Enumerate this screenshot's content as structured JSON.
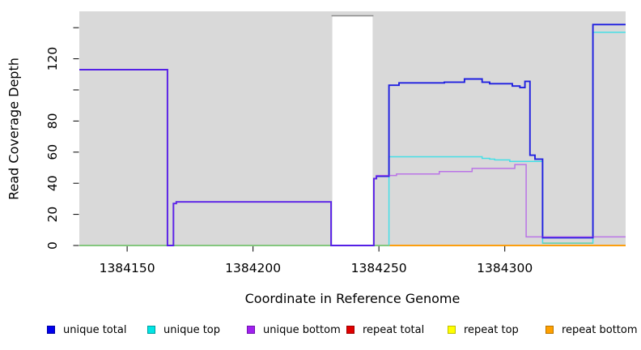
{
  "figure": {
    "xlabel": "Coordinate in Reference Genome",
    "ylabel": "Read Coverage Depth"
  },
  "chart_data": {
    "type": "line",
    "style": "step",
    "title": "",
    "xlabel": "Coordinate in Reference Genome",
    "ylabel": "Read Coverage Depth",
    "xlim": [
      1384131,
      1384348
    ],
    "ylim": [
      0,
      150.5
    ],
    "x_ticks": [
      1384150,
      1384200,
      1384250,
      1384300
    ],
    "x_tick_labels": [
      "1384150",
      "1384200",
      "1384250",
      "1384300"
    ],
    "y_ticks": [
      0,
      20,
      40,
      60,
      80,
      100,
      120,
      140
    ],
    "y_tick_labels": [
      "0",
      "20",
      "40",
      "60",
      "80",
      "",
      "120",
      ""
    ],
    "grid": false,
    "plot_bg": "#D9D9D9",
    "gap_region": {
      "x1": 1384231.5,
      "x2": 1384247.5,
      "fill": "#FFFFFF",
      "top_border_color": "#8A8A8A"
    },
    "series": [
      {
        "name": "unique total",
        "color": "#1F1FE0",
        "opacity": 1,
        "width": 1.9,
        "points": [
          [
            1384131,
            113
          ],
          [
            1384166,
            113
          ],
          [
            1384166,
            0
          ],
          [
            1384168.4,
            0
          ],
          [
            1384168.4,
            27
          ],
          [
            1384169.5,
            27
          ],
          [
            1384169.5,
            28
          ],
          [
            1384231,
            28
          ],
          [
            1384231,
            0
          ],
          [
            1384248,
            0
          ],
          [
            1384248,
            43
          ],
          [
            1384249,
            43
          ],
          [
            1384249,
            44.5
          ],
          [
            1384254,
            44.5
          ],
          [
            1384254,
            103
          ],
          [
            1384258,
            103
          ],
          [
            1384258,
            104.5
          ],
          [
            1384276,
            104.5
          ],
          [
            1384276,
            105
          ],
          [
            1384284,
            105
          ],
          [
            1384284,
            107
          ],
          [
            1384291,
            107
          ],
          [
            1384291,
            105
          ],
          [
            1384294,
            105
          ],
          [
            1384294,
            104
          ],
          [
            1384303,
            104
          ],
          [
            1384303,
            102.5
          ],
          [
            1384306,
            102.5
          ],
          [
            1384306,
            101.5
          ],
          [
            1384308,
            101.5
          ],
          [
            1384308,
            105.5
          ],
          [
            1384310,
            105.5
          ],
          [
            1384310,
            58
          ],
          [
            1384312,
            58
          ],
          [
            1384312,
            55.5
          ],
          [
            1384315,
            55.5
          ],
          [
            1384315,
            5
          ],
          [
            1384335,
            5
          ],
          [
            1384335,
            142
          ],
          [
            1384348,
            142
          ]
        ]
      },
      {
        "name": "unique top",
        "color": "#45DFE6",
        "opacity": 1,
        "width": 1.5,
        "points": [
          [
            1384131,
            0
          ],
          [
            1384254,
            0
          ],
          [
            1384254,
            57
          ],
          [
            1384291,
            57
          ],
          [
            1384291,
            56
          ],
          [
            1384294,
            56
          ],
          [
            1384294,
            55.5
          ],
          [
            1384296,
            55.5
          ],
          [
            1384296,
            55
          ],
          [
            1384302,
            55
          ],
          [
            1384302,
            54
          ],
          [
            1384315,
            54
          ],
          [
            1384315,
            1.5
          ],
          [
            1384335,
            1.5
          ],
          [
            1384335,
            137
          ],
          [
            1384348,
            137
          ]
        ]
      },
      {
        "name": "unique bottom",
        "color": "#A020F0",
        "opacity": 0.55,
        "width": 1.5,
        "points": [
          [
            1384131,
            113
          ],
          [
            1384166,
            113
          ],
          [
            1384166,
            0
          ],
          [
            1384168.4,
            0
          ],
          [
            1384168.4,
            27
          ],
          [
            1384169.5,
            27
          ],
          [
            1384169.5,
            28
          ],
          [
            1384231,
            28
          ],
          [
            1384231,
            0
          ],
          [
            1384248,
            0
          ],
          [
            1384248,
            43
          ],
          [
            1384249,
            43
          ],
          [
            1384249,
            45
          ],
          [
            1384257,
            45
          ],
          [
            1384257,
            46
          ],
          [
            1384274,
            46
          ],
          [
            1384274,
            47.5
          ],
          [
            1384287,
            47.5
          ],
          [
            1384287,
            49.5
          ],
          [
            1384304,
            49.5
          ],
          [
            1384304,
            52
          ],
          [
            1384308.5,
            52
          ],
          [
            1384308.5,
            5.5
          ],
          [
            1384348,
            5.5
          ]
        ]
      },
      {
        "name": "repeat total",
        "color": "#DD0000",
        "opacity": 1,
        "width": 1.5,
        "points": [
          [
            1384131,
            0
          ],
          [
            1384348,
            0
          ]
        ]
      },
      {
        "name": "repeat top",
        "color": "#FFFF00",
        "opacity": 1,
        "width": 1.5,
        "points": [
          [
            1384131,
            0
          ],
          [
            1384348,
            0
          ]
        ]
      },
      {
        "name": "repeat bottom",
        "color": "#FF9500",
        "opacity": 1,
        "width": 1.5,
        "points": [
          [
            1384131,
            0
          ],
          [
            1384348,
            0
          ]
        ]
      }
    ],
    "draw_order": [
      "repeat total",
      "repeat top",
      "repeat bottom",
      "unique top",
      "__overlays__",
      "unique total",
      "unique bottom"
    ],
    "overlap_overlays": [
      {
        "x1": 1384131,
        "x2": 1384231,
        "value": 0,
        "color": "#7CC87C"
      },
      {
        "x1": 1384247.5,
        "x2": 1384254,
        "value": 0,
        "color": "#7CC87C"
      },
      {
        "x1": 1384315,
        "x2": 1384335,
        "value": 1.5,
        "color": "#6FCDA4"
      }
    ],
    "legend_position": "bottom",
    "legend": [
      {
        "label": "unique total",
        "fill": "#0000EE",
        "border": "#0000A0"
      },
      {
        "label": "unique top",
        "fill": "#00E5E5",
        "border": "#009E9E"
      },
      {
        "label": "unique bottom",
        "fill": "#A020F0",
        "border": "#7212AE"
      },
      {
        "label": "repeat total",
        "fill": "#E00000",
        "border": "#9E0000"
      },
      {
        "label": "repeat top",
        "fill": "#FFFF00",
        "border": "#BFBF00"
      },
      {
        "label": "repeat bottom",
        "fill": "#FFA000",
        "border": "#B87400"
      }
    ]
  }
}
